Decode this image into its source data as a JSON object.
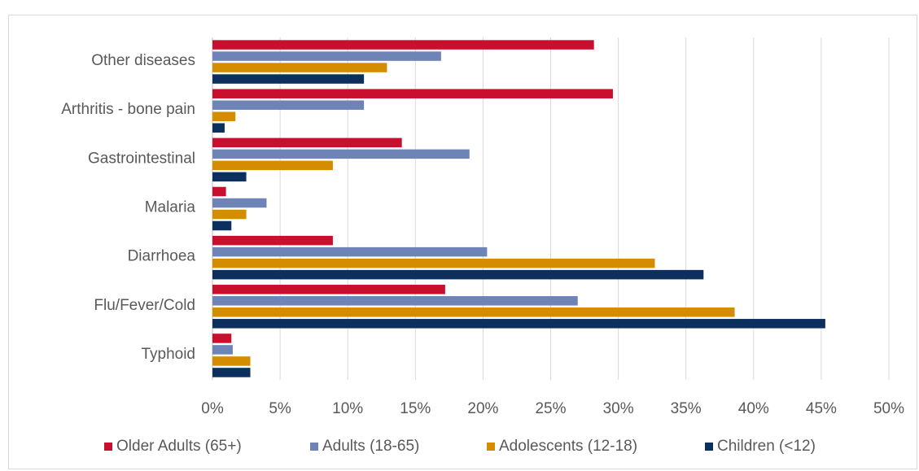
{
  "chart_data": {
    "type": "bar",
    "orientation": "horizontal",
    "title": "",
    "xlabel": "",
    "ylabel": "",
    "categories": [
      "Other diseases",
      "Arthritis - bone pain",
      "Gastrointestinal",
      "Malaria",
      "Diarrhoea",
      "Flu/Fever/Cold",
      "Typhoid"
    ],
    "xlim": [
      0,
      50
    ],
    "x_ticks": [
      "0%",
      "5%",
      "10%",
      "15%",
      "20%",
      "25%",
      "30%",
      "35%",
      "40%",
      "45%",
      "50%"
    ],
    "x_tick_values": [
      0,
      5,
      10,
      15,
      20,
      25,
      30,
      35,
      40,
      45,
      50
    ],
    "grid": "vertical",
    "legend_position": "bottom",
    "series": [
      {
        "name": "Older Adults (65+)",
        "color": "#c8102e",
        "values": [
          28.2,
          29.6,
          14.0,
          1.0,
          8.9,
          17.2,
          1.4
        ]
      },
      {
        "name": "Adults (18-65)",
        "color": "#6f84b6",
        "values": [
          16.9,
          11.2,
          19.0,
          4.0,
          20.3,
          27.0,
          1.5
        ]
      },
      {
        "name": "Adolescents (12-18)",
        "color": "#d48c00",
        "values": [
          12.9,
          1.7,
          8.9,
          2.5,
          32.7,
          38.6,
          2.8
        ]
      },
      {
        "name": "Children (<12)",
        "color": "#0c2f5e",
        "values": [
          11.2,
          0.9,
          2.5,
          1.4,
          36.3,
          45.3,
          2.8
        ]
      }
    ]
  }
}
